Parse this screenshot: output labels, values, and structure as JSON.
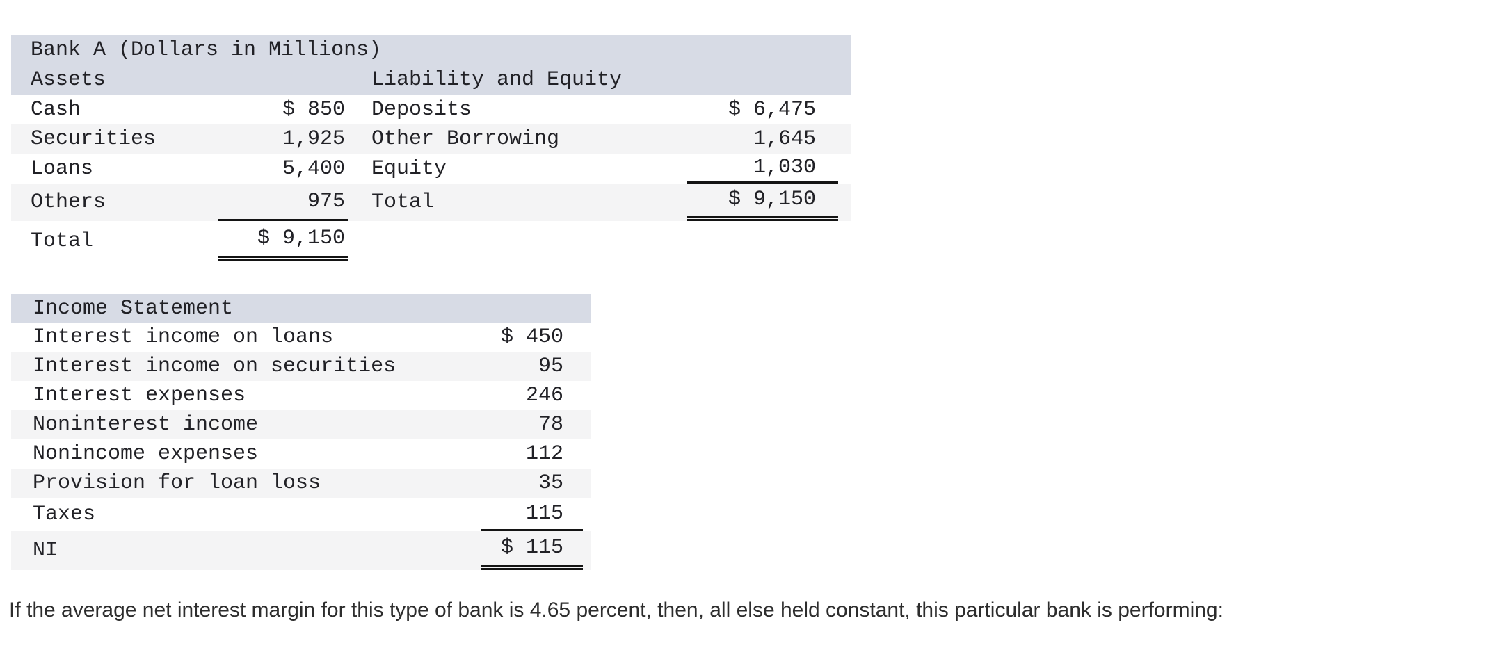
{
  "colors": {
    "header_bg": "#d7dbe5",
    "stripe_bg": "#f4f4f5",
    "rule": "#141414",
    "table_text": "#212126",
    "question_text": "#2d2d2d"
  },
  "balance_sheet": {
    "title": "Bank A (Dollars in Millions)",
    "left_header": "Assets",
    "right_header": "Liability and Equity",
    "rows": [
      {
        "l_label": "Cash",
        "l_value": "$ 850",
        "r_label": "Deposits",
        "r_value": "$ 6,475"
      },
      {
        "l_label": "Securities",
        "l_value": "1,925",
        "r_label": "Other Borrowing",
        "r_value": "1,645"
      },
      {
        "l_label": "Loans",
        "l_value": "5,400",
        "r_label": "Equity",
        "r_value": "1,030"
      },
      {
        "l_label": "Others",
        "l_value": "975",
        "r_label": "Total",
        "r_value": "$ 9,150"
      },
      {
        "l_label": "Total",
        "l_value": "$ 9,150",
        "r_label": "",
        "r_value": ""
      }
    ]
  },
  "income_statement": {
    "title": "Income Statement",
    "rows": [
      {
        "label": "Interest income on loans",
        "value": "$ 450"
      },
      {
        "label": "Interest income on securities",
        "value": "95"
      },
      {
        "label": "Interest expenses",
        "value": "246"
      },
      {
        "label": "Noninterest income",
        "value": "78"
      },
      {
        "label": "Nonincome expenses",
        "value": "112"
      },
      {
        "label": "Provision for loan loss",
        "value": "35"
      },
      {
        "label": "Taxes",
        "value": "115"
      },
      {
        "label": "NI",
        "value": "$ 115"
      }
    ]
  },
  "question": "If the average net interest margin for this type of bank is 4.65 percent, then, all else held constant, this particular bank is performing:"
}
